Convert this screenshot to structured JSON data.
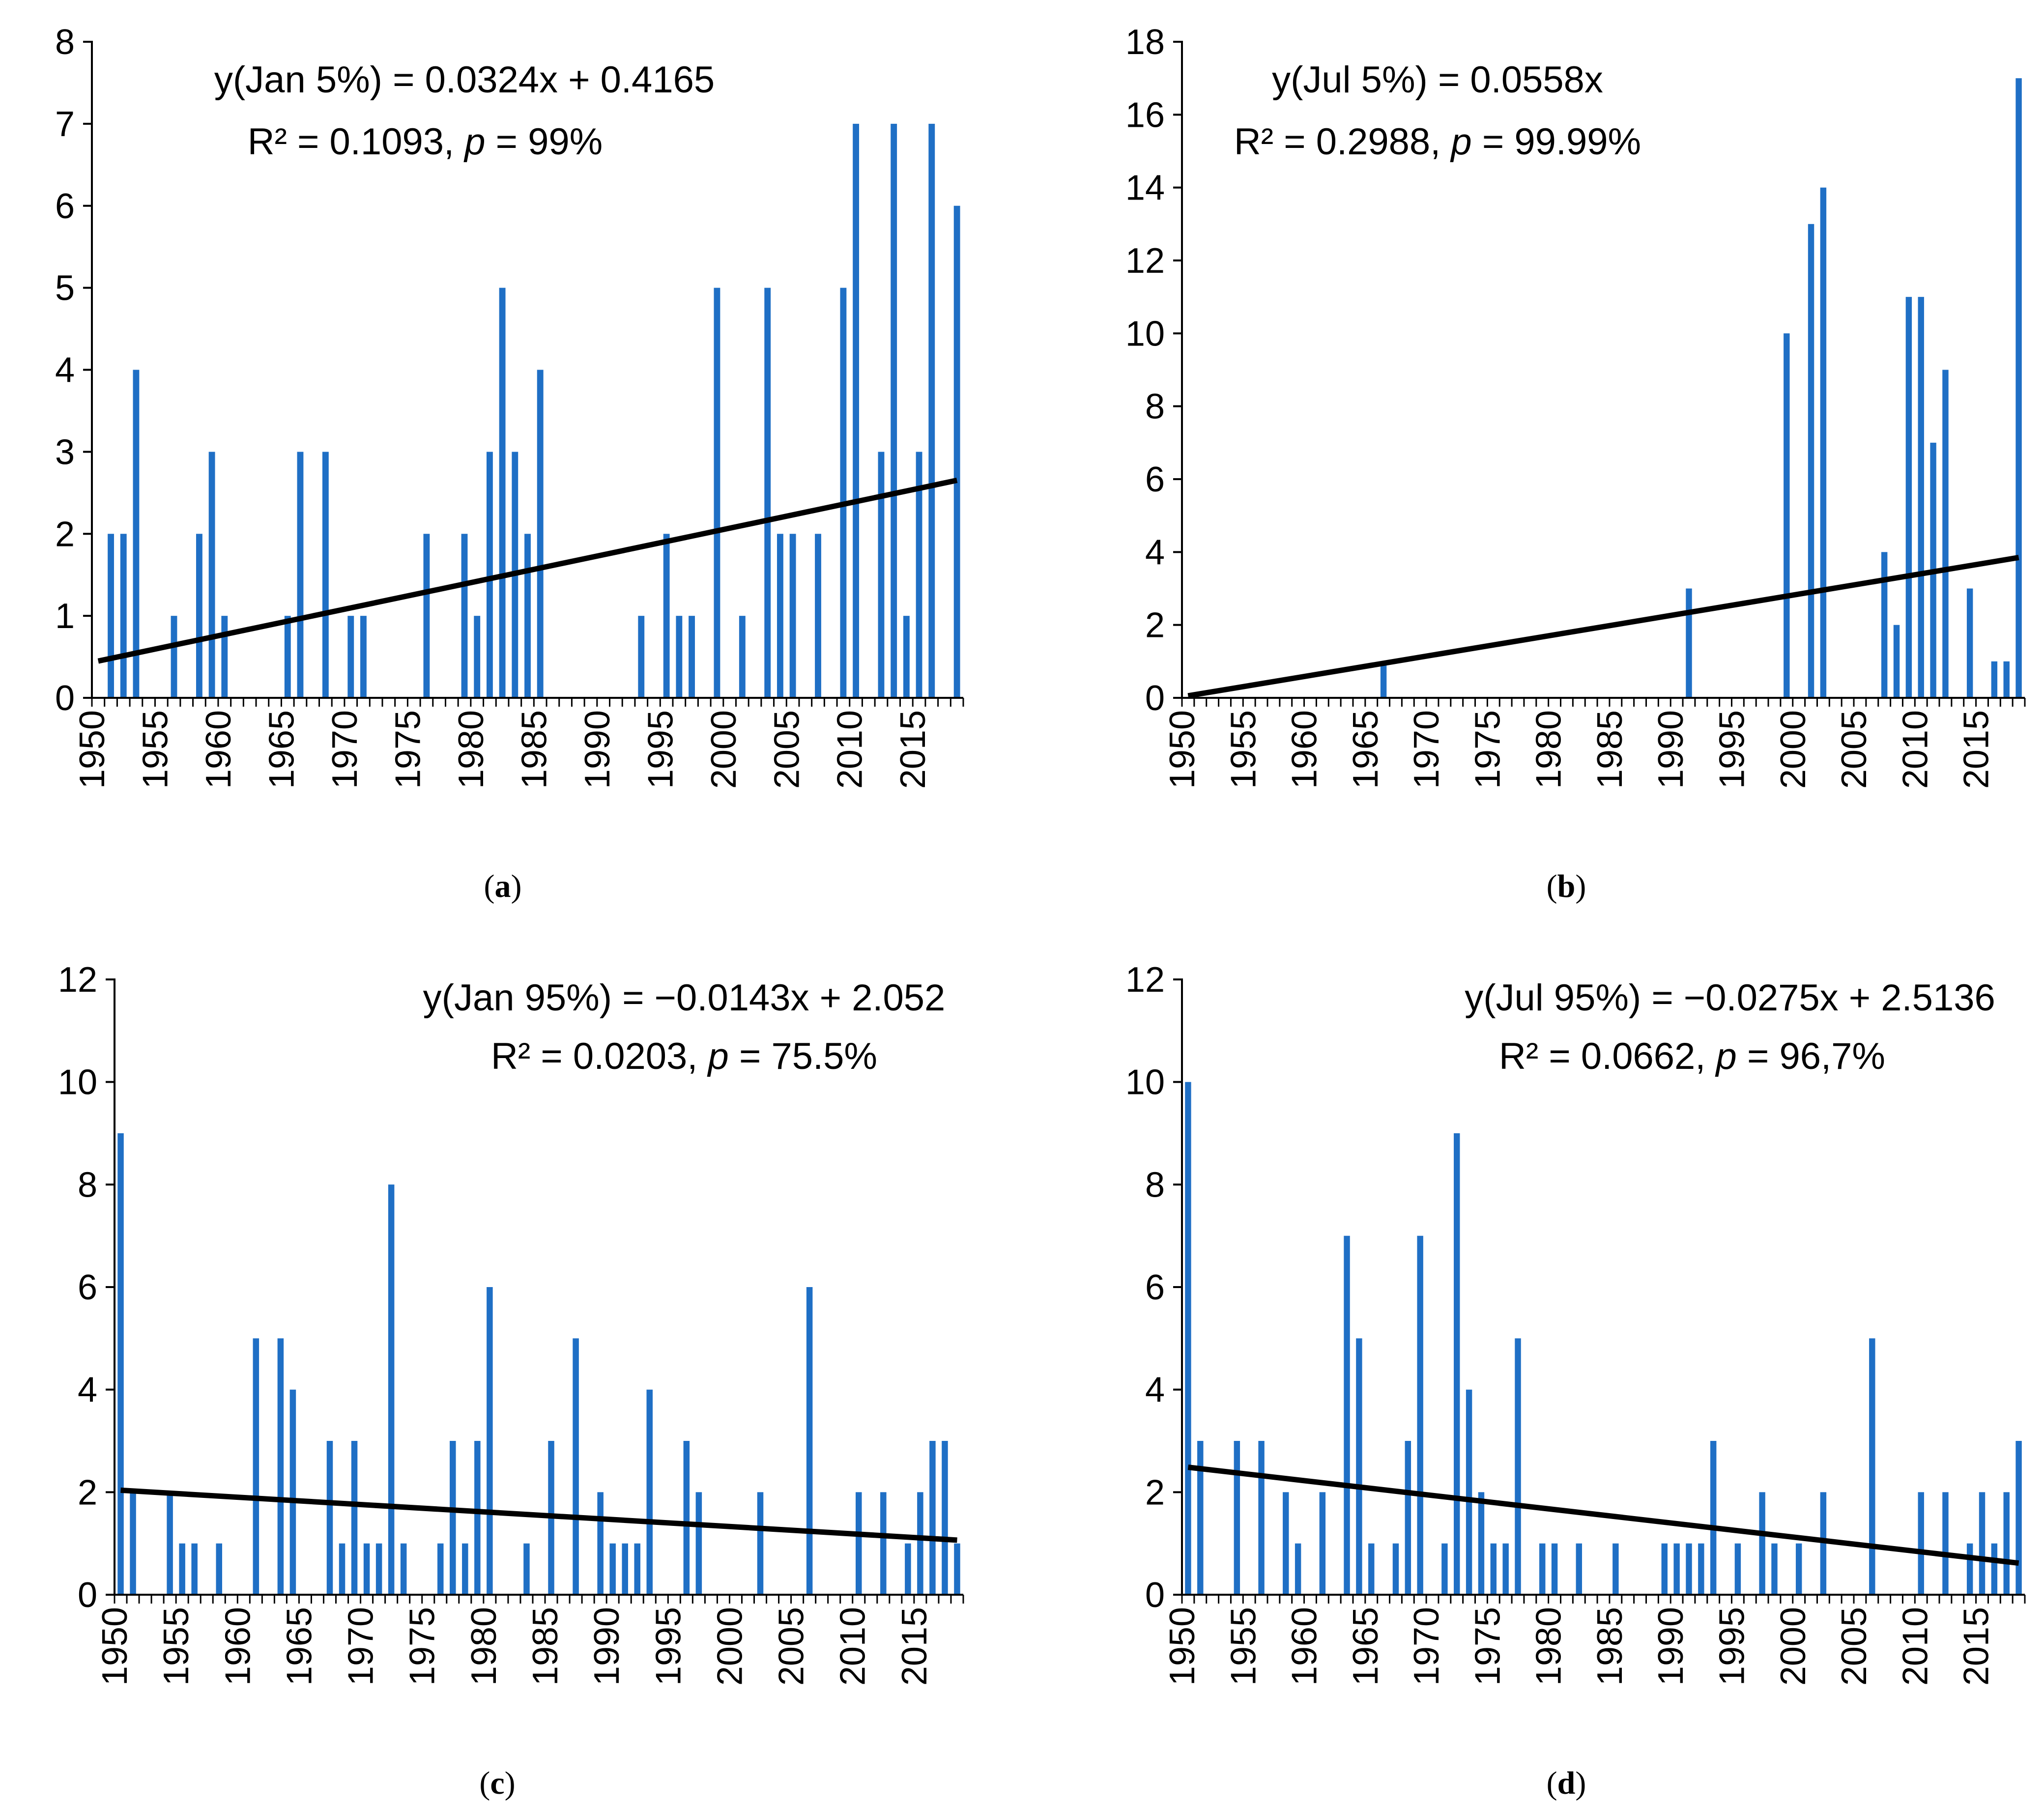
{
  "colors": {
    "bar": "#1f6fc5",
    "trend": "#000000",
    "axis": "#000000"
  },
  "chart_data": [
    {
      "id": "a",
      "type": "bar",
      "panel_label": "a",
      "title": "",
      "xlabel": "",
      "ylabel": "",
      "equation": "y(Jan 5%) = 0.0324x + 0.4165",
      "r2_text": "R² = 0.1093, ",
      "p_symbol": "p",
      "p_text": " = 99%",
      "ylim": [
        0,
        8
      ],
      "yticks": [
        0,
        1,
        2,
        3,
        4,
        5,
        6,
        7,
        8
      ],
      "xrange": [
        1950,
        2018
      ],
      "xticks": [
        1950,
        1955,
        1960,
        1965,
        1970,
        1975,
        1980,
        1985,
        1990,
        1995,
        2000,
        2005,
        2010,
        2015
      ],
      "trend": {
        "slope": 0.0324,
        "intercept": 0.4165
      },
      "years": [
        1951,
        1952,
        1953,
        1956,
        1958,
        1959,
        1960,
        1965,
        1966,
        1968,
        1970,
        1971,
        1976,
        1979,
        1980,
        1981,
        1982,
        1983,
        1984,
        1985,
        1993,
        1995,
        1996,
        1997,
        1999,
        2001,
        2003,
        2004,
        2005,
        2007,
        2009,
        2010,
        2012,
        2013,
        2014,
        2015,
        2016,
        2018
      ],
      "values": [
        2,
        2,
        4,
        1,
        2,
        3,
        1,
        1,
        3,
        3,
        1,
        1,
        2,
        2,
        1,
        3,
        5,
        3,
        2,
        4,
        1,
        2,
        1,
        1,
        5,
        1,
        5,
        2,
        2,
        2,
        5,
        7,
        3,
        7,
        1,
        3,
        7,
        6
      ]
    },
    {
      "id": "b",
      "type": "bar",
      "panel_label": "b",
      "title": "",
      "xlabel": "",
      "ylabel": "",
      "equation": "y(Jul 5%) = 0.0558x",
      "r2_text": "R² = 0.2988, ",
      "p_symbol": "p",
      "p_text": " = 99.99%",
      "ylim": [
        0,
        18
      ],
      "yticks": [
        0,
        2,
        4,
        6,
        8,
        10,
        12,
        14,
        16,
        18
      ],
      "xrange": [
        1950,
        2018
      ],
      "xticks": [
        1950,
        1955,
        1960,
        1965,
        1970,
        1975,
        1980,
        1985,
        1990,
        1995,
        2000,
        2005,
        2010,
        2015
      ],
      "trend": {
        "slope": 0.0558,
        "intercept": 0
      },
      "years": [
        1966,
        1991,
        1999,
        2001,
        2002,
        2007,
        2008,
        2009,
        2010,
        2011,
        2012,
        2014,
        2016,
        2017,
        2018
      ],
      "values": [
        1,
        3,
        10,
        13,
        14,
        4,
        2,
        11,
        11,
        7,
        9,
        3,
        1,
        1,
        17
      ]
    },
    {
      "id": "c",
      "type": "bar",
      "panel_label": "c",
      "title": "",
      "xlabel": "",
      "ylabel": "",
      "equation": "y(Jan 95%) = −0.0143x + 2.052",
      "r2_text": "R² = 0.0203, ",
      "p_symbol": "p",
      "p_text": " = 75.5%",
      "ylim": [
        0,
        12
      ],
      "yticks": [
        0,
        2,
        4,
        6,
        8,
        10,
        12
      ],
      "xrange": [
        1950,
        2018
      ],
      "xticks": [
        1950,
        1955,
        1960,
        1965,
        1970,
        1975,
        1980,
        1985,
        1990,
        1995,
        2000,
        2005,
        2010,
        2015
      ],
      "trend": {
        "slope": -0.0143,
        "intercept": 2.052
      },
      "years": [
        1950,
        1951,
        1954,
        1955,
        1956,
        1958,
        1961,
        1963,
        1964,
        1967,
        1968,
        1969,
        1970,
        1971,
        1972,
        1973,
        1976,
        1977,
        1978,
        1979,
        1980,
        1983,
        1985,
        1987,
        1989,
        1990,
        1991,
        1992,
        1993,
        1996,
        1997,
        2002,
        2006,
        2010,
        2012,
        2014,
        2015,
        2016,
        2017,
        2018
      ],
      "values": [
        9,
        2,
        2,
        1,
        1,
        1,
        5,
        5,
        4,
        3,
        1,
        3,
        1,
        1,
        8,
        1,
        1,
        3,
        1,
        3,
        6,
        1,
        3,
        5,
        2,
        1,
        1,
        1,
        4,
        3,
        2,
        2,
        6,
        2,
        2,
        1,
        2,
        3,
        3,
        1
      ]
    },
    {
      "id": "d",
      "type": "bar",
      "panel_label": "d",
      "title": "",
      "xlabel": "",
      "ylabel": "",
      "equation": "y(Jul 95%) = −0.0275x + 2.5136",
      "r2_text": "R² = 0.0662, ",
      "p_symbol": "p",
      "p_text": " = 96,7%",
      "ylim": [
        0,
        12
      ],
      "yticks": [
        0,
        2,
        4,
        6,
        8,
        10,
        12
      ],
      "xrange": [
        1950,
        2018
      ],
      "xticks": [
        1950,
        1955,
        1960,
        1965,
        1970,
        1975,
        1980,
        1985,
        1990,
        1995,
        2000,
        2005,
        2010,
        2015
      ],
      "trend": {
        "slope": -0.0275,
        "intercept": 2.5136
      },
      "years": [
        1950,
        1951,
        1954,
        1956,
        1958,
        1959,
        1961,
        1963,
        1964,
        1965,
        1967,
        1968,
        1969,
        1971,
        1972,
        1973,
        1974,
        1975,
        1976,
        1977,
        1979,
        1980,
        1982,
        1985,
        1989,
        1990,
        1991,
        1992,
        1993,
        1995,
        1997,
        1998,
        2000,
        2002,
        2006,
        2010,
        2012,
        2014,
        2015,
        2016,
        2017,
        2018
      ],
      "values": [
        10,
        3,
        3,
        3,
        2,
        1,
        2,
        7,
        5,
        1,
        1,
        3,
        7,
        1,
        9,
        4,
        2,
        1,
        1,
        5,
        1,
        1,
        1,
        1,
        1,
        1,
        1,
        1,
        3,
        1,
        2,
        1,
        1,
        2,
        5,
        2,
        2,
        1,
        2,
        1,
        2,
        3
      ]
    }
  ]
}
